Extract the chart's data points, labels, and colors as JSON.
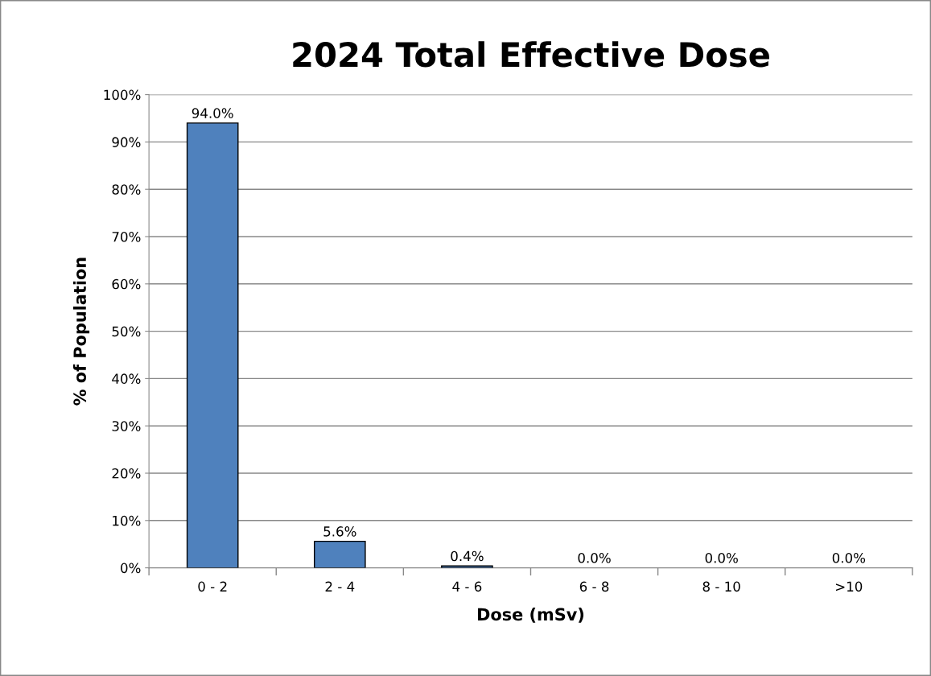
{
  "chart_data": {
    "type": "bar",
    "title": "2024 Total Effective Dose",
    "xlabel": "Dose (mSv)",
    "ylabel": "% of Population",
    "categories": [
      "0 - 2",
      "2 - 4",
      "4 - 6",
      "6 - 8",
      "8 - 10",
      ">10"
    ],
    "values": [
      94.0,
      5.6,
      0.4,
      0.0,
      0.0,
      0.0
    ],
    "value_labels": [
      "94.0%",
      "5.6%",
      "0.4%",
      "0.0%",
      "0.0%",
      "0.0%"
    ],
    "color": "#4f81bd",
    "ylim": [
      0,
      100
    ],
    "yticks": [
      {
        "value": 0,
        "label": "0%"
      },
      {
        "value": 10,
        "label": "10%"
      },
      {
        "value": 20,
        "label": "20%"
      },
      {
        "value": 30,
        "label": "30%"
      },
      {
        "value": 40,
        "label": "40%"
      },
      {
        "value": 50,
        "label": "50%"
      },
      {
        "value": 60,
        "label": "60%"
      },
      {
        "value": 70,
        "label": "70%"
      },
      {
        "value": 80,
        "label": "80%"
      },
      {
        "value": 90,
        "label": "90%"
      },
      {
        "value": 100,
        "label": "100%"
      }
    ],
    "grid": "y",
    "legend": false
  }
}
